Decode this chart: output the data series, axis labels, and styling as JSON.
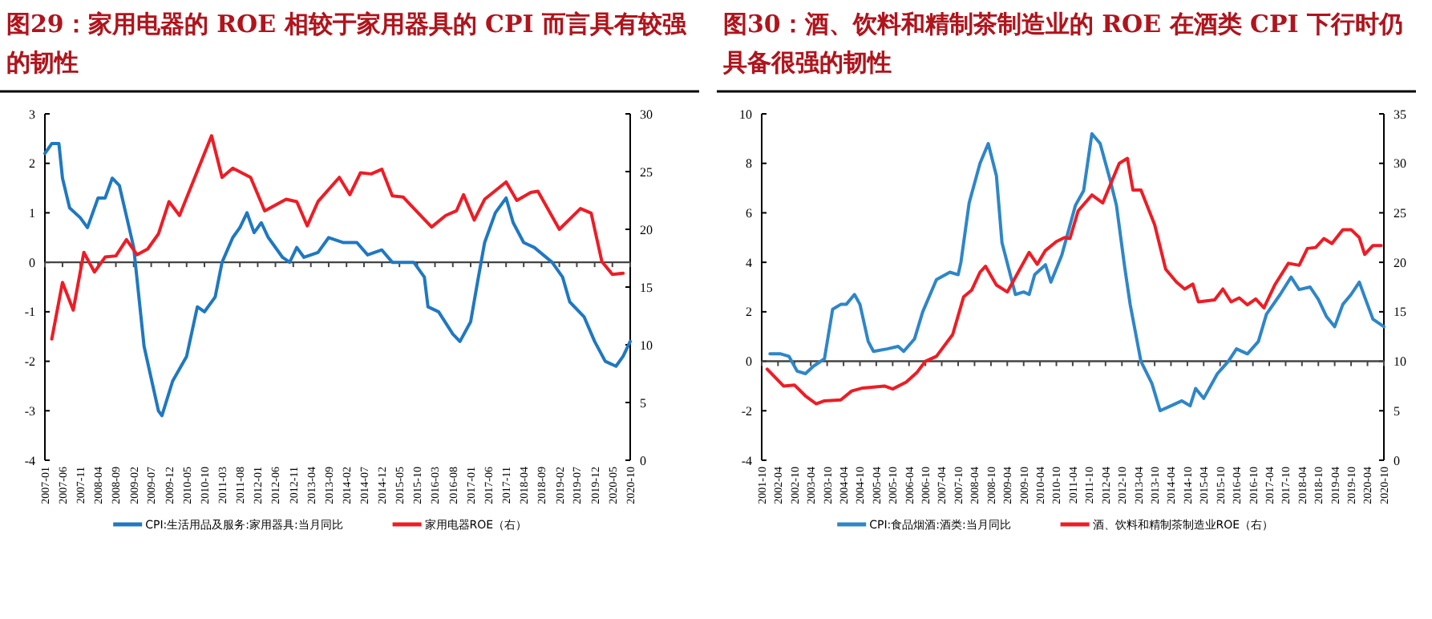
{
  "chart_data": [
    {
      "type": "line",
      "title": "图29：家用电器的 ROE 相较于家用器具的 CPI 而言具有较强的韧性",
      "xlim": [
        "2007-01",
        "2020-10"
      ],
      "xticks": [
        "2007-01",
        "2007-06",
        "2007-11",
        "2008-04",
        "2008-09",
        "2009-02",
        "2009-07",
        "2009-12",
        "2010-05",
        "2010-10",
        "2011-03",
        "2011-08",
        "2012-01",
        "2012-06",
        "2012-11",
        "2013-04",
        "2013-09",
        "2014-02",
        "2014-07",
        "2014-12",
        "2015-05",
        "2015-10",
        "2016-03",
        "2016-08",
        "2017-01",
        "2017-06",
        "2017-11",
        "2018-04",
        "2018-09",
        "2019-02",
        "2019-07",
        "2019-12",
        "2020-05",
        "2020-10"
      ],
      "ylim": [
        -4,
        3
      ],
      "yticks": [
        -4,
        -3,
        -2,
        -1,
        0,
        1,
        2,
        3
      ],
      "y2lim": [
        0,
        30
      ],
      "y2ticks": [
        0,
        5,
        10,
        15,
        20,
        25,
        30
      ],
      "legend": "bottom",
      "series": [
        {
          "name": "CPI:生活用品及服务:家用器具:当月同比",
          "color": "#1f78c1",
          "x": [
            "2007-01",
            "2007-03",
            "2007-05",
            "2007-06",
            "2007-08",
            "2007-11",
            "2008-01",
            "2008-04",
            "2008-06",
            "2008-08",
            "2008-10",
            "2009-02",
            "2009-05",
            "2009-09",
            "2009-10",
            "2010-01",
            "2010-05",
            "2010-08",
            "2010-10",
            "2011-01",
            "2011-03",
            "2011-06",
            "2011-08",
            "2011-10",
            "2011-12",
            "2012-02",
            "2012-04",
            "2012-08",
            "2012-10",
            "2012-12",
            "2013-02",
            "2013-06",
            "2013-09",
            "2014-01",
            "2014-05",
            "2014-08",
            "2014-12",
            "2015-03",
            "2015-09",
            "2015-12",
            "2016-01",
            "2016-04",
            "2016-08",
            "2016-10",
            "2017-01",
            "2017-03",
            "2017-05",
            "2017-08",
            "2017-11",
            "2018-01",
            "2018-04",
            "2018-07",
            "2018-12",
            "2019-03",
            "2019-05",
            "2019-09",
            "2019-12",
            "2020-03",
            "2020-06",
            "2020-08",
            "2020-10"
          ],
          "values": [
            2.2,
            2.4,
            2.4,
            1.7,
            1.1,
            0.9,
            0.7,
            1.3,
            1.3,
            1.7,
            1.55,
            0.3,
            -1.7,
            -3.0,
            -3.1,
            -2.4,
            -1.9,
            -0.9,
            -1.0,
            -0.7,
            0.0,
            0.5,
            0.7,
            1.0,
            0.6,
            0.8,
            0.5,
            0.1,
            0.0,
            0.3,
            0.1,
            0.2,
            0.5,
            0.4,
            0.4,
            0.15,
            0.25,
            0.0,
            0.0,
            -0.3,
            -0.9,
            -1.0,
            -1.45,
            -1.6,
            -1.2,
            -0.4,
            0.4,
            1.0,
            1.3,
            0.8,
            0.4,
            0.3,
            0.0,
            -0.3,
            -0.8,
            -1.1,
            -1.6,
            -2.0,
            -2.1,
            -1.9,
            -1.6
          ]
        },
        {
          "name": "家用电器ROE（右）",
          "color": "#ee1c25",
          "axis": "y2",
          "x": [
            "2007-03",
            "2007-06",
            "2007-09",
            "2007-12",
            "2008-03",
            "2008-06",
            "2008-09",
            "2008-12",
            "2009-03",
            "2009-06",
            "2009-09",
            "2009-12",
            "2010-03",
            "2010-12",
            "2011-03",
            "2011-06",
            "2011-11",
            "2012-03",
            "2012-09",
            "2012-12",
            "2013-03",
            "2013-06",
            "2013-12",
            "2014-03",
            "2014-06",
            "2014-09",
            "2014-12",
            "2015-03",
            "2015-06",
            "2015-10",
            "2016-02",
            "2016-06",
            "2016-09",
            "2016-11",
            "2017-02",
            "2017-05",
            "2017-11",
            "2018-02",
            "2018-06",
            "2018-08",
            "2019-02",
            "2019-08",
            "2019-11",
            "2020-02",
            "2020-05",
            "2020-08"
          ],
          "values": [
            10.5,
            15.4,
            13.0,
            18.0,
            16.3,
            17.6,
            17.7,
            19.1,
            17.8,
            18.3,
            19.6,
            22.4,
            21.2,
            28.1,
            24.5,
            25.3,
            24.5,
            21.6,
            22.6,
            22.4,
            20.3,
            22.4,
            24.5,
            23.0,
            24.9,
            24.8,
            25.2,
            22.9,
            22.8,
            21.5,
            20.2,
            21.2,
            21.6,
            23.0,
            20.8,
            22.6,
            24.1,
            22.5,
            23.2,
            23.3,
            20.0,
            21.8,
            21.4,
            17.2,
            16.1,
            16.2
          ]
        }
      ]
    },
    {
      "type": "line",
      "title": "图30：酒、饮料和精制茶制造业的 ROE 在酒类 CPI 下行时仍具备很强的韧性",
      "xlim": [
        "2001-10",
        "2020-10"
      ],
      "xticks": [
        "2001-10",
        "2002-04",
        "2002-10",
        "2003-04",
        "2003-10",
        "2004-04",
        "2004-10",
        "2005-04",
        "2005-10",
        "2006-04",
        "2006-10",
        "2007-04",
        "2007-10",
        "2008-04",
        "2008-10",
        "2009-04",
        "2009-10",
        "2010-04",
        "2010-10",
        "2011-04",
        "2011-10",
        "2012-04",
        "2012-10",
        "2013-04",
        "2013-10",
        "2014-04",
        "2014-10",
        "2015-04",
        "2015-10",
        "2016-04",
        "2016-10",
        "2017-04",
        "2017-10",
        "2018-04",
        "2018-10",
        "2019-04",
        "2019-10",
        "2020-04",
        "2020-10"
      ],
      "ylim": [
        -4,
        10
      ],
      "yticks": [
        -4,
        -2,
        0,
        2,
        4,
        6,
        8,
        10
      ],
      "y2lim": [
        0,
        35
      ],
      "y2ticks": [
        0,
        5,
        10,
        15,
        20,
        25,
        30,
        35
      ],
      "legend": "bottom",
      "series": [
        {
          "name": "CPI:食品烟酒:酒类:当月同比",
          "color": "#2e86c8",
          "x": [
            "2002-01",
            "2002-05",
            "2002-08",
            "2002-11",
            "2003-02",
            "2003-05",
            "2003-09",
            "2003-12",
            "2004-03",
            "2004-05",
            "2004-08",
            "2004-10",
            "2005-01",
            "2005-03",
            "2005-08",
            "2005-12",
            "2006-02",
            "2006-06",
            "2006-09",
            "2007-02",
            "2007-07",
            "2007-10",
            "2007-11",
            "2008-02",
            "2008-06",
            "2008-09",
            "2008-12",
            "2009-02",
            "2009-07",
            "2009-10",
            "2009-12",
            "2010-02",
            "2010-06",
            "2010-08",
            "2010-12",
            "2011-05",
            "2011-08",
            "2011-11",
            "2012-02",
            "2012-06",
            "2012-08",
            "2012-11",
            "2013-01",
            "2013-05",
            "2013-09",
            "2013-12",
            "2014-04",
            "2014-08",
            "2014-11",
            "2015-01",
            "2015-04",
            "2015-09",
            "2016-01",
            "2016-04",
            "2016-08",
            "2016-12",
            "2017-03",
            "2017-08",
            "2017-12",
            "2018-03",
            "2018-07",
            "2018-10",
            "2019-01",
            "2019-04",
            "2019-07",
            "2019-10",
            "2020-01",
            "2020-03",
            "2020-06",
            "2020-10"
          ],
          "values": [
            0.3,
            0.3,
            0.2,
            -0.4,
            -0.5,
            -0.2,
            0.1,
            2.1,
            2.3,
            2.3,
            2.7,
            2.3,
            0.8,
            0.4,
            0.5,
            0.6,
            0.4,
            0.9,
            2.0,
            3.3,
            3.6,
            3.5,
            4.0,
            6.4,
            8.0,
            8.8,
            7.5,
            4.8,
            2.7,
            2.8,
            2.7,
            3.5,
            3.9,
            3.2,
            4.3,
            6.3,
            6.9,
            9.2,
            8.8,
            7.2,
            6.3,
            3.8,
            2.3,
            0.0,
            -0.9,
            -2.0,
            -1.8,
            -1.6,
            -1.8,
            -1.1,
            -1.5,
            -0.5,
            0.0,
            0.5,
            0.3,
            0.8,
            1.9,
            2.7,
            3.4,
            2.9,
            3.0,
            2.5,
            1.8,
            1.4,
            2.3,
            2.7,
            3.2,
            2.6,
            1.7,
            1.4
          ]
        },
        {
          "name": "酒、饮料和精制茶制造业ROE（右）",
          "color": "#ee1c25",
          "axis": "y2",
          "x": [
            "2001-12",
            "2002-06",
            "2002-10",
            "2003-02",
            "2003-06",
            "2003-09",
            "2004-03",
            "2004-07",
            "2004-11",
            "2005-07",
            "2005-10",
            "2006-03",
            "2006-07",
            "2006-10",
            "2007-02",
            "2007-08",
            "2007-12",
            "2008-03",
            "2008-06",
            "2008-08",
            "2008-12",
            "2009-04",
            "2009-08",
            "2009-12",
            "2010-03",
            "2010-06",
            "2010-10",
            "2011-01",
            "2011-03",
            "2011-06",
            "2011-11",
            "2012-03",
            "2012-09",
            "2012-12",
            "2013-02",
            "2013-05",
            "2013-10",
            "2014-02",
            "2014-06",
            "2014-09",
            "2014-12",
            "2015-02",
            "2015-08",
            "2015-11",
            "2016-02",
            "2016-05",
            "2016-08",
            "2016-11",
            "2017-02",
            "2017-06",
            "2017-11",
            "2018-03",
            "2018-06",
            "2018-09",
            "2018-12",
            "2019-03",
            "2019-07",
            "2019-10",
            "2020-01",
            "2020-03",
            "2020-06",
            "2020-09"
          ],
          "values": [
            9.2,
            7.5,
            7.6,
            6.5,
            5.7,
            6.0,
            6.1,
            7.0,
            7.3,
            7.5,
            7.2,
            7.9,
            8.9,
            10.0,
            10.5,
            12.7,
            16.5,
            17.2,
            19.0,
            19.6,
            17.7,
            17.0,
            19.0,
            21.0,
            19.8,
            21.2,
            22.1,
            22.5,
            22.4,
            25.2,
            26.8,
            26.0,
            30.0,
            30.5,
            27.3,
            27.3,
            23.8,
            19.3,
            18.0,
            17.3,
            17.8,
            16.0,
            16.2,
            17.3,
            16.0,
            16.4,
            15.7,
            16.3,
            15.4,
            17.7,
            19.9,
            19.7,
            21.4,
            21.5,
            22.4,
            21.9,
            23.3,
            23.3,
            22.5,
            20.8,
            21.7,
            21.7
          ]
        }
      ]
    }
  ]
}
